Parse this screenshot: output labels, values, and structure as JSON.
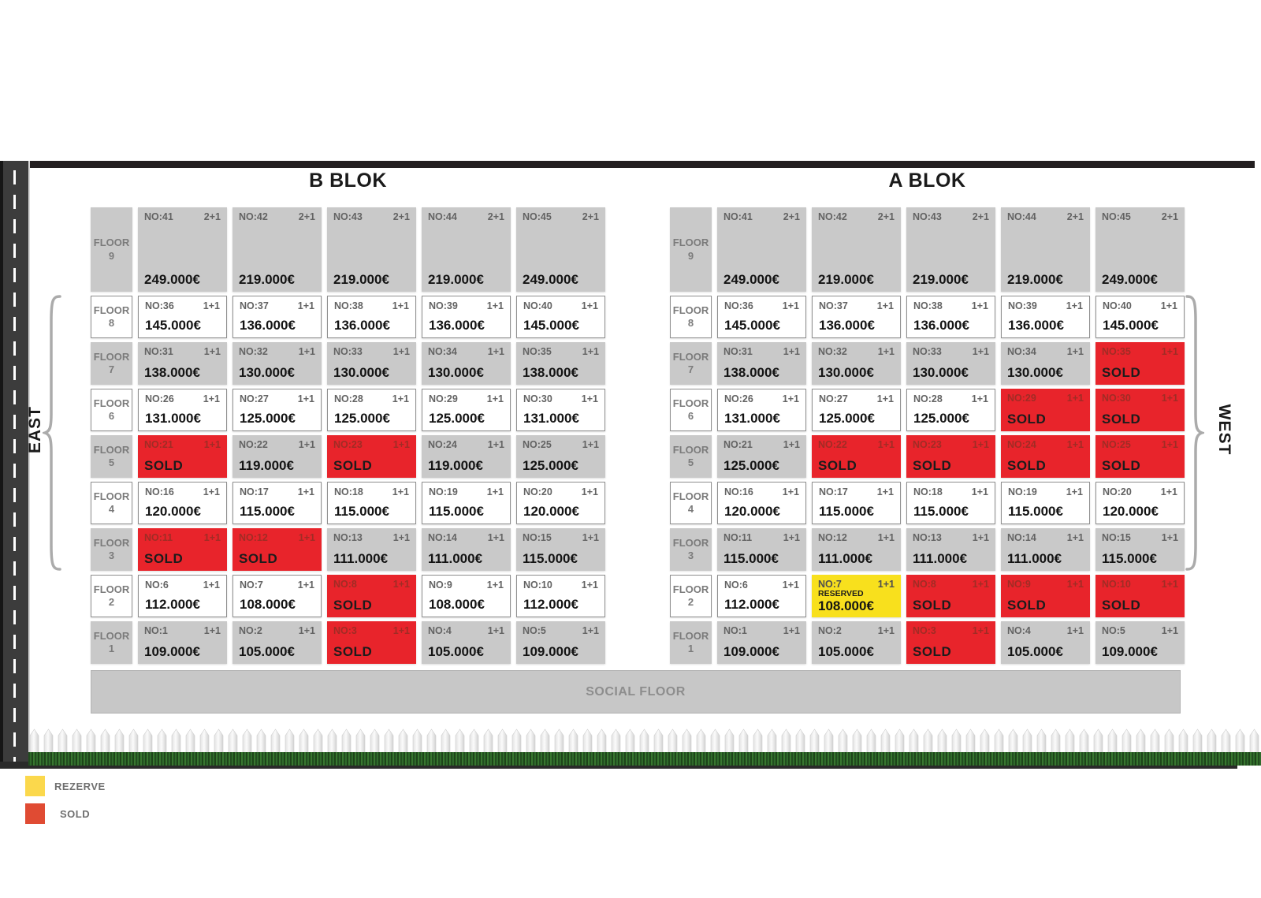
{
  "page": {
    "direction_labels": {
      "east": "EAST",
      "west": "WEST"
    },
    "social_floor": "SOCIAL FLOOR",
    "status_text": {
      "sold": "SOLD",
      "reserved": "RESERVED"
    },
    "legend": [
      {
        "key": "reserve",
        "label": "REZERVE",
        "color": "#fbd84c"
      },
      {
        "key": "sold",
        "label": "SOLD",
        "color": "#e04b33"
      }
    ],
    "colors": {
      "sold_cell": "#e8242b",
      "reserved_cell": "#f8e01d",
      "gray_cell": "#c9c9c9",
      "white_cell": "#ffffff"
    }
  },
  "blocks": [
    {
      "id": "b",
      "title": "B BLOK",
      "floors": [
        {
          "floor_label": "FLOOR",
          "floor_number": "9",
          "shade": "gray",
          "tall": true,
          "units": [
            {
              "no": "NO:41",
              "type": "2+1",
              "price": "249.000€",
              "status": "available"
            },
            {
              "no": "NO:42",
              "type": "2+1",
              "price": "219.000€",
              "status": "available"
            },
            {
              "no": "NO:43",
              "type": "2+1",
              "price": "219.000€",
              "status": "available"
            },
            {
              "no": "NO:44",
              "type": "2+1",
              "price": "219.000€",
              "status": "available"
            },
            {
              "no": "NO:45",
              "type": "2+1",
              "price": "249.000€",
              "status": "available"
            }
          ]
        },
        {
          "floor_label": "FLOOR",
          "floor_number": "8",
          "shade": "white",
          "tall": false,
          "units": [
            {
              "no": "NO:36",
              "type": "1+1",
              "price": "145.000€",
              "status": "available"
            },
            {
              "no": "NO:37",
              "type": "1+1",
              "price": "136.000€",
              "status": "available"
            },
            {
              "no": "NO:38",
              "type": "1+1",
              "price": "136.000€",
              "status": "available"
            },
            {
              "no": "NO:39",
              "type": "1+1",
              "price": "136.000€",
              "status": "available"
            },
            {
              "no": "NO:40",
              "type": "1+1",
              "price": "145.000€",
              "status": "available"
            }
          ]
        },
        {
          "floor_label": "FLOOR",
          "floor_number": "7",
          "shade": "gray",
          "tall": false,
          "units": [
            {
              "no": "NO:31",
              "type": "1+1",
              "price": "138.000€",
              "status": "available"
            },
            {
              "no": "NO:32",
              "type": "1+1",
              "price": "130.000€",
              "status": "available"
            },
            {
              "no": "NO:33",
              "type": "1+1",
              "price": "130.000€",
              "status": "available"
            },
            {
              "no": "NO:34",
              "type": "1+1",
              "price": "130.000€",
              "status": "available"
            },
            {
              "no": "NO:35",
              "type": "1+1",
              "price": "138.000€",
              "status": "available"
            }
          ]
        },
        {
          "floor_label": "FLOOR",
          "floor_number": "6",
          "shade": "white",
          "tall": false,
          "units": [
            {
              "no": "NO:26",
              "type": "1+1",
              "price": "131.000€",
              "status": "available"
            },
            {
              "no": "NO:27",
              "type": "1+1",
              "price": "125.000€",
              "status": "available"
            },
            {
              "no": "NO:28",
              "type": "1+1",
              "price": "125.000€",
              "status": "available"
            },
            {
              "no": "NO:29",
              "type": "1+1",
              "price": "125.000€",
              "status": "available"
            },
            {
              "no": "NO:30",
              "type": "1+1",
              "price": "131.000€",
              "status": "available"
            }
          ]
        },
        {
          "floor_label": "FLOOR",
          "floor_number": "5",
          "shade": "gray",
          "tall": false,
          "units": [
            {
              "no": "NO:21",
              "type": "1+1",
              "price": null,
              "status": "sold"
            },
            {
              "no": "NO:22",
              "type": "1+1",
              "price": "119.000€",
              "status": "available"
            },
            {
              "no": "NO:23",
              "type": "1+1",
              "price": null,
              "status": "sold"
            },
            {
              "no": "NO:24",
              "type": "1+1",
              "price": "119.000€",
              "status": "available"
            },
            {
              "no": "NO:25",
              "type": "1+1",
              "price": "125.000€",
              "status": "available"
            }
          ]
        },
        {
          "floor_label": "FLOOR",
          "floor_number": "4",
          "shade": "white",
          "tall": false,
          "units": [
            {
              "no": "NO:16",
              "type": "1+1",
              "price": "120.000€",
              "status": "available"
            },
            {
              "no": "NO:17",
              "type": "1+1",
              "price": "115.000€",
              "status": "available"
            },
            {
              "no": "NO:18",
              "type": "1+1",
              "price": "115.000€",
              "status": "available"
            },
            {
              "no": "NO:19",
              "type": "1+1",
              "price": "115.000€",
              "status": "available"
            },
            {
              "no": "NO:20",
              "type": "1+1",
              "price": "120.000€",
              "status": "available"
            }
          ]
        },
        {
          "floor_label": "FLOOR",
          "floor_number": "3",
          "shade": "gray",
          "tall": false,
          "units": [
            {
              "no": "NO:11",
              "type": "1+1",
              "price": null,
              "status": "sold"
            },
            {
              "no": "NO:12",
              "type": "1+1",
              "price": null,
              "status": "sold"
            },
            {
              "no": "NO:13",
              "type": "1+1",
              "price": "111.000€",
              "status": "available"
            },
            {
              "no": "NO:14",
              "type": "1+1",
              "price": "111.000€",
              "status": "available"
            },
            {
              "no": "NO:15",
              "type": "1+1",
              "price": "115.000€",
              "status": "available"
            }
          ]
        },
        {
          "floor_label": "FLOOR",
          "floor_number": "2",
          "shade": "white",
          "tall": false,
          "units": [
            {
              "no": "NO:6",
              "type": "1+1",
              "price": "112.000€",
              "status": "available"
            },
            {
              "no": "NO:7",
              "type": "1+1",
              "price": "108.000€",
              "status": "available"
            },
            {
              "no": "NO:8",
              "type": "1+1",
              "price": null,
              "status": "sold"
            },
            {
              "no": "NO:9",
              "type": "1+1",
              "price": "108.000€",
              "status": "available"
            },
            {
              "no": "NO:10",
              "type": "1+1",
              "price": "112.000€",
              "status": "available"
            }
          ]
        },
        {
          "floor_label": "FLOOR",
          "floor_number": "1",
          "shade": "gray",
          "tall": false,
          "units": [
            {
              "no": "NO:1",
              "type": "1+1",
              "price": "109.000€",
              "status": "available"
            },
            {
              "no": "NO:2",
              "type": "1+1",
              "price": "105.000€",
              "status": "available"
            },
            {
              "no": "NO:3",
              "type": "1+1",
              "price": null,
              "status": "sold"
            },
            {
              "no": "NO:4",
              "type": "1+1",
              "price": "105.000€",
              "status": "available"
            },
            {
              "no": "NO:5",
              "type": "1+1",
              "price": "109.000€",
              "status": "available"
            }
          ]
        }
      ]
    },
    {
      "id": "a",
      "title": "A BLOK",
      "floors": [
        {
          "floor_label": "FLOOR",
          "floor_number": "9",
          "shade": "gray",
          "tall": true,
          "units": [
            {
              "no": "NO:41",
              "type": "2+1",
              "price": "249.000€",
              "status": "available"
            },
            {
              "no": "NO:42",
              "type": "2+1",
              "price": "219.000€",
              "status": "available"
            },
            {
              "no": "NO:43",
              "type": "2+1",
              "price": "219.000€",
              "status": "available"
            },
            {
              "no": "NO:44",
              "type": "2+1",
              "price": "219.000€",
              "status": "available"
            },
            {
              "no": "NO:45",
              "type": "2+1",
              "price": "249.000€",
              "status": "available"
            }
          ]
        },
        {
          "floor_label": "FLOOR",
          "floor_number": "8",
          "shade": "white",
          "tall": false,
          "units": [
            {
              "no": "NO:36",
              "type": "1+1",
              "price": "145.000€",
              "status": "available"
            },
            {
              "no": "NO:37",
              "type": "1+1",
              "price": "136.000€",
              "status": "available"
            },
            {
              "no": "NO:38",
              "type": "1+1",
              "price": "136.000€",
              "status": "available"
            },
            {
              "no": "NO:39",
              "type": "1+1",
              "price": "136.000€",
              "status": "available"
            },
            {
              "no": "NO:40",
              "type": "1+1",
              "price": "145.000€",
              "status": "available"
            }
          ]
        },
        {
          "floor_label": "FLOOR",
          "floor_number": "7",
          "shade": "gray",
          "tall": false,
          "units": [
            {
              "no": "NO:31",
              "type": "1+1",
              "price": "138.000€",
              "status": "available"
            },
            {
              "no": "NO:32",
              "type": "1+1",
              "price": "130.000€",
              "status": "available"
            },
            {
              "no": "NO:33",
              "type": "1+1",
              "price": "130.000€",
              "status": "available"
            },
            {
              "no": "NO:34",
              "type": "1+1",
              "price": "130.000€",
              "status": "available"
            },
            {
              "no": "NO:35",
              "type": "1+1",
              "price": null,
              "status": "sold"
            }
          ]
        },
        {
          "floor_label": "FLOOR",
          "floor_number": "6",
          "shade": "white",
          "tall": false,
          "units": [
            {
              "no": "NO:26",
              "type": "1+1",
              "price": "131.000€",
              "status": "available"
            },
            {
              "no": "NO:27",
              "type": "1+1",
              "price": "125.000€",
              "status": "available"
            },
            {
              "no": "NO:28",
              "type": "1+1",
              "price": "125.000€",
              "status": "available"
            },
            {
              "no": "NO:29",
              "type": "1+1",
              "price": null,
              "status": "sold"
            },
            {
              "no": "NO:30",
              "type": "1+1",
              "price": null,
              "status": "sold"
            }
          ]
        },
        {
          "floor_label": "FLOOR",
          "floor_number": "5",
          "shade": "gray",
          "tall": false,
          "units": [
            {
              "no": "NO:21",
              "type": "1+1",
              "price": "125.000€",
              "status": "available"
            },
            {
              "no": "NO:22",
              "type": "1+1",
              "price": null,
              "status": "sold"
            },
            {
              "no": "NO:23",
              "type": "1+1",
              "price": null,
              "status": "sold"
            },
            {
              "no": "NO:24",
              "type": "1+1",
              "price": null,
              "status": "sold"
            },
            {
              "no": "NO:25",
              "type": "1+1",
              "price": null,
              "status": "sold"
            }
          ]
        },
        {
          "floor_label": "FLOOR",
          "floor_number": "4",
          "shade": "white",
          "tall": false,
          "units": [
            {
              "no": "NO:16",
              "type": "1+1",
              "price": "120.000€",
              "status": "available"
            },
            {
              "no": "NO:17",
              "type": "1+1",
              "price": "115.000€",
              "status": "available"
            },
            {
              "no": "NO:18",
              "type": "1+1",
              "price": "115.000€",
              "status": "available"
            },
            {
              "no": "NO:19",
              "type": "1+1",
              "price": "115.000€",
              "status": "available"
            },
            {
              "no": "NO:20",
              "type": "1+1",
              "price": "120.000€",
              "status": "available"
            }
          ]
        },
        {
          "floor_label": "FLOOR",
          "floor_number": "3",
          "shade": "gray",
          "tall": false,
          "units": [
            {
              "no": "NO:11",
              "type": "1+1",
              "price": "115.000€",
              "status": "available"
            },
            {
              "no": "NO:12",
              "type": "1+1",
              "price": "111.000€",
              "status": "available"
            },
            {
              "no": "NO:13",
              "type": "1+1",
              "price": "111.000€",
              "status": "available"
            },
            {
              "no": "NO:14",
              "type": "1+1",
              "price": "111.000€",
              "status": "available"
            },
            {
              "no": "NO:15",
              "type": "1+1",
              "price": "115.000€",
              "status": "available"
            }
          ]
        },
        {
          "floor_label": "FLOOR",
          "floor_number": "2",
          "shade": "white",
          "tall": false,
          "units": [
            {
              "no": "NO:6",
              "type": "1+1",
              "price": "112.000€",
              "status": "available"
            },
            {
              "no": "NO:7",
              "type": "1+1",
              "price": "108.000€",
              "status": "reserved"
            },
            {
              "no": "NO:8",
              "type": "1+1",
              "price": null,
              "status": "sold"
            },
            {
              "no": "NO:9",
              "type": "1+1",
              "price": null,
              "status": "sold"
            },
            {
              "no": "NO:10",
              "type": "1+1",
              "price": null,
              "status": "sold"
            }
          ]
        },
        {
          "floor_label": "FLOOR",
          "floor_number": "1",
          "shade": "gray",
          "tall": false,
          "units": [
            {
              "no": "NO:1",
              "type": "1+1",
              "price": "109.000€",
              "status": "available"
            },
            {
              "no": "NO:2",
              "type": "1+1",
              "price": "105.000€",
              "status": "available"
            },
            {
              "no": "NO:3",
              "type": "1+1",
              "price": null,
              "status": "sold"
            },
            {
              "no": "NO:4",
              "type": "1+1",
              "price": "105.000€",
              "status": "available"
            },
            {
              "no": "NO:5",
              "type": "1+1",
              "price": "109.000€",
              "status": "available"
            }
          ]
        }
      ]
    }
  ]
}
